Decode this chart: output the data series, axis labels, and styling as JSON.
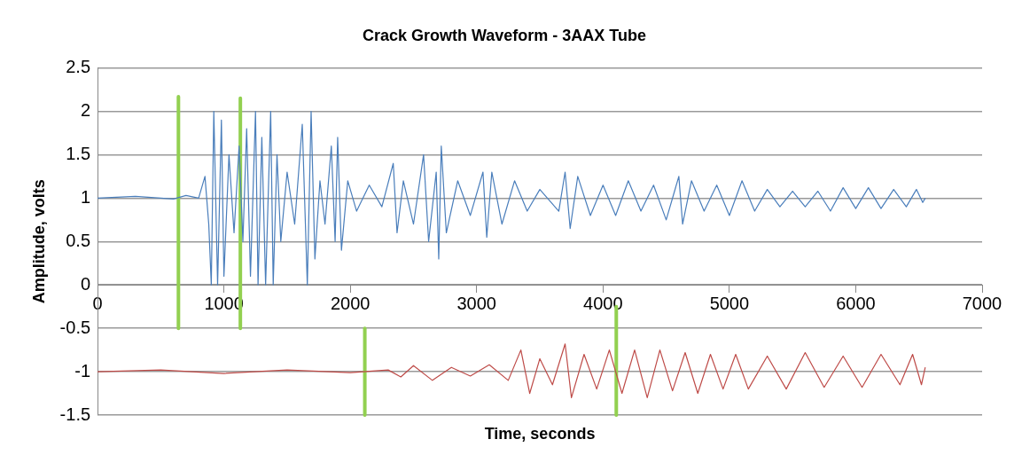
{
  "chart_data": {
    "type": "line",
    "title": "Crack Growth Waveform - 3AAX Tube",
    "xlabel": "Time, seconds",
    "ylabel": "Amplitude, volts",
    "xlim": [
      0,
      7000
    ],
    "xticks": [
      0,
      1000,
      2000,
      3000,
      4000,
      5000,
      6000,
      7000
    ],
    "ylim": [
      -1.5,
      2.5
    ],
    "yticks": [
      -1.5,
      -1,
      -0.5,
      0,
      0.5,
      1,
      1.5,
      2,
      2.5
    ],
    "grid": "y",
    "legend": false,
    "marker": "none",
    "line_style": "solid",
    "series": [
      {
        "color": "#4a7ebb",
        "x": [
          0,
          300,
          600,
          700,
          800,
          850,
          880,
          900,
          920,
          950,
          980,
          1000,
          1040,
          1080,
          1120,
          1150,
          1180,
          1210,
          1250,
          1270,
          1300,
          1330,
          1370,
          1390,
          1420,
          1450,
          1500,
          1560,
          1620,
          1660,
          1690,
          1720,
          1760,
          1800,
          1850,
          1880,
          1900,
          1930,
          1980,
          2050,
          2150,
          2250,
          2340,
          2370,
          2420,
          2500,
          2580,
          2620,
          2680,
          2700,
          2720,
          2760,
          2850,
          2950,
          3050,
          3080,
          3120,
          3200,
          3300,
          3400,
          3500,
          3650,
          3700,
          3740,
          3800,
          3900,
          4000,
          4100,
          4200,
          4300,
          4400,
          4500,
          4600,
          4630,
          4700,
          4800,
          4900,
          5000,
          5100,
          5200,
          5300,
          5400,
          5500,
          5600,
          5700,
          5800,
          5900,
          6000,
          6100,
          6200,
          6300,
          6400,
          6480,
          6530,
          6550
        ],
        "values": [
          1,
          1.02,
          0.99,
          1.03,
          1,
          1.25,
          0.7,
          0,
          2,
          0,
          1.9,
          0.1,
          1.5,
          0.6,
          1.6,
          0.5,
          1.8,
          0.1,
          2,
          0,
          1.7,
          0,
          2,
          0,
          1.5,
          0.5,
          1.3,
          0.7,
          1.85,
          0,
          2,
          0.3,
          1.2,
          0.7,
          1.6,
          0.5,
          1.7,
          0.4,
          1.2,
          0.85,
          1.15,
          0.9,
          1.4,
          0.6,
          1.2,
          0.7,
          1.5,
          0.5,
          1.3,
          0.3,
          1.6,
          0.6,
          1.2,
          0.8,
          1.3,
          0.55,
          1.3,
          0.7,
          1.2,
          0.85,
          1.1,
          0.85,
          1.3,
          0.65,
          1.25,
          0.8,
          1.15,
          0.8,
          1.2,
          0.85,
          1.15,
          0.75,
          1.25,
          0.7,
          1.2,
          0.85,
          1.15,
          0.8,
          1.2,
          0.85,
          1.1,
          0.9,
          1.08,
          0.9,
          1.08,
          0.85,
          1.12,
          0.88,
          1.12,
          0.88,
          1.1,
          0.9,
          1.1,
          0.95,
          1
        ]
      },
      {
        "color": "#be4b48",
        "x": [
          0,
          500,
          1000,
          1500,
          2000,
          2300,
          2400,
          2500,
          2650,
          2800,
          2950,
          3100,
          3250,
          3350,
          3420,
          3500,
          3600,
          3700,
          3750,
          3850,
          3950,
          4050,
          4150,
          4250,
          4350,
          4450,
          4550,
          4650,
          4750,
          4850,
          4950,
          5050,
          5150,
          5300,
          5450,
          5600,
          5750,
          5900,
          6050,
          6200,
          6350,
          6450,
          6520,
          6550
        ],
        "values": [
          -1,
          -0.98,
          -1.02,
          -0.98,
          -1.01,
          -0.98,
          -1.06,
          -0.93,
          -1.1,
          -0.95,
          -1.05,
          -0.92,
          -1.1,
          -0.75,
          -1.25,
          -0.85,
          -1.15,
          -0.68,
          -1.3,
          -0.8,
          -1.2,
          -0.75,
          -1.25,
          -0.75,
          -1.3,
          -0.75,
          -1.22,
          -0.78,
          -1.25,
          -0.8,
          -1.2,
          -0.8,
          -1.2,
          -0.82,
          -1.2,
          -0.78,
          -1.18,
          -0.82,
          -1.18,
          -0.8,
          -1.15,
          -0.8,
          -1.15,
          -0.95
        ]
      },
      {
        "color": "#92d050",
        "x": [
          640,
          640
        ],
        "values": [
          2.17,
          -0.5
        ]
      },
      {
        "color": "#92d050",
        "x": [
          1130,
          1130
        ],
        "values": [
          2.15,
          -0.5
        ]
      },
      {
        "color": "#92d050",
        "x": [
          2115,
          2115
        ],
        "values": [
          -0.5,
          -1.5
        ]
      },
      {
        "color": "#92d050",
        "x": [
          4105,
          4105
        ],
        "values": [
          -0.25,
          -1.5
        ]
      }
    ]
  }
}
